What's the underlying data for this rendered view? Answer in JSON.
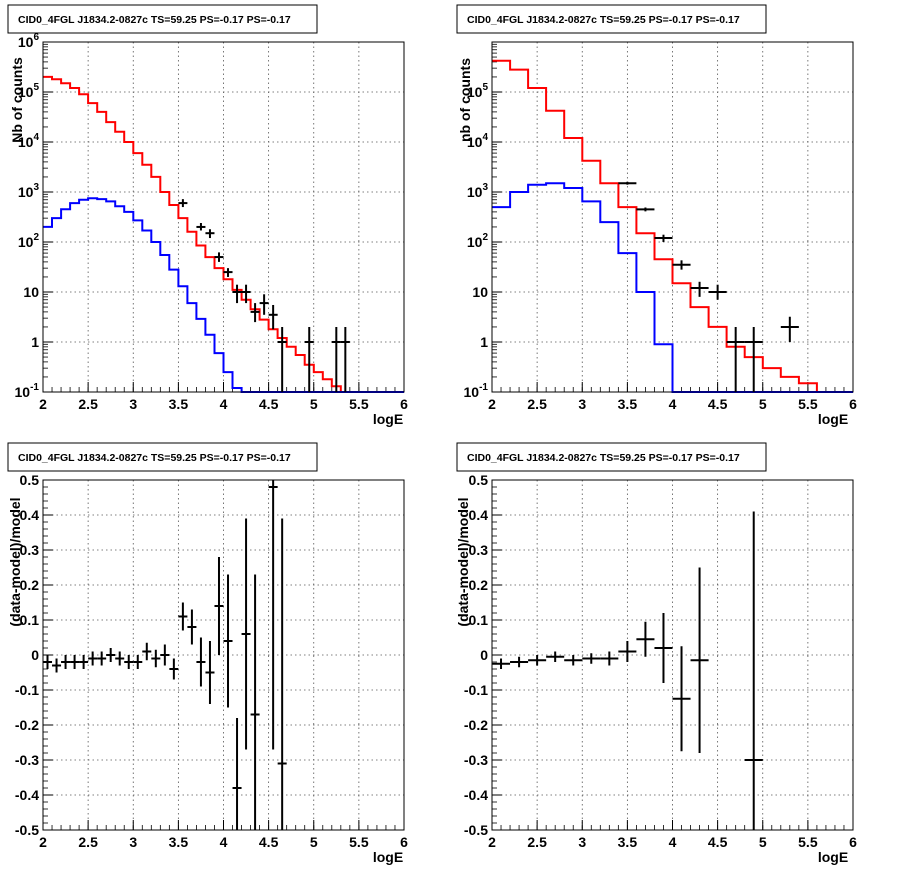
{
  "chart_data": [
    {
      "type": "line",
      "title": "CID0_4FGL J1834.2-0827c TS=59.25 PS=-0.17 PS=-0.17",
      "xlabel": "logE",
      "ylabel": "Nb of counts",
      "xlim": [
        2,
        6
      ],
      "ylim": [
        0.1,
        1000000
      ],
      "yscale": "log",
      "grid": true,
      "x_ticks": [
        "2",
        "2.5",
        "3",
        "3.5",
        "4",
        "4.5",
        "5",
        "5.5",
        "6"
      ],
      "y_ticks": [
        "10^-1",
        "1",
        "10",
        "10^2",
        "10^3",
        "10^4",
        "10^5",
        "10^6"
      ],
      "series": [
        {
          "color": "#ff0000",
          "style": "step",
          "edges": [
            2.0,
            2.1,
            2.2,
            2.3,
            2.4,
            2.5,
            2.6,
            2.7,
            2.8,
            2.9,
            3.0,
            3.1,
            3.2,
            3.3,
            3.4,
            3.5,
            3.6,
            3.7,
            3.8,
            3.9,
            4.0,
            4.1,
            4.2,
            4.3,
            4.4,
            4.5,
            4.6,
            4.7,
            4.8,
            4.9,
            5.0,
            5.1,
            5.2,
            5.3,
            5.4,
            5.5,
            5.6,
            5.7,
            5.8,
            5.9,
            6.0
          ],
          "values": [
            200000,
            180000,
            150000,
            120000,
            90000,
            60000,
            40000,
            25000,
            16000,
            10000,
            6000,
            3500,
            2000,
            1000,
            550,
            300,
            160,
            85,
            50,
            30,
            18,
            11,
            7,
            4.5,
            2.8,
            1.8,
            1.2,
            0.8,
            0.55,
            0.35,
            0.25,
            0.18,
            0.13,
            0.1,
            0.1,
            0.1,
            0.1,
            0.1,
            0.1,
            0.1
          ]
        },
        {
          "color": "#0000ff",
          "style": "step",
          "edges": [
            2.0,
            2.1,
            2.2,
            2.3,
            2.4,
            2.5,
            2.6,
            2.7,
            2.8,
            2.9,
            3.0,
            3.1,
            3.2,
            3.3,
            3.4,
            3.5,
            3.6,
            3.7,
            3.8,
            3.9,
            4.0,
            4.1,
            4.2,
            4.3,
            4.4,
            4.5,
            4.6,
            4.7,
            4.8,
            4.9,
            5.0,
            5.1,
            5.2,
            5.3,
            5.4,
            5.5,
            5.6,
            5.7,
            5.8,
            5.9,
            6.0
          ],
          "values": [
            200,
            300,
            450,
            600,
            700,
            750,
            720,
            650,
            520,
            400,
            270,
            170,
            100,
            55,
            28,
            13,
            6,
            2.9,
            1.4,
            0.6,
            0.25,
            0.12,
            0.1,
            0.1,
            0.1,
            0.1,
            0.1,
            0.1,
            0.1,
            0.1,
            0.1,
            0.1,
            0.1,
            0.1,
            0.1,
            0.1,
            0.1,
            0.1,
            0.1,
            0.1
          ]
        }
      ],
      "points": [
        {
          "x": 3.55,
          "y": 600,
          "ylo": 500,
          "yhi": 720,
          "xerr": 0.05
        },
        {
          "x": 3.75,
          "y": 200,
          "ylo": 170,
          "yhi": 240,
          "xerr": 0.05
        },
        {
          "x": 3.85,
          "y": 150,
          "ylo": 120,
          "yhi": 180,
          "xerr": 0.05
        },
        {
          "x": 3.95,
          "y": 50,
          "ylo": 40,
          "yhi": 62,
          "xerr": 0.05
        },
        {
          "x": 4.05,
          "y": 25,
          "ylo": 20,
          "yhi": 30,
          "xerr": 0.05
        },
        {
          "x": 4.15,
          "y": 10,
          "ylo": 6,
          "yhi": 14,
          "xerr": 0.05
        },
        {
          "x": 4.25,
          "y": 10,
          "ylo": 6,
          "yhi": 14,
          "xerr": 0.05
        },
        {
          "x": 4.35,
          "y": 4,
          "ylo": 2.5,
          "yhi": 6,
          "xerr": 0.05
        },
        {
          "x": 4.45,
          "y": 6,
          "ylo": 3.5,
          "yhi": 9,
          "xerr": 0.05
        },
        {
          "x": 4.55,
          "y": 3.5,
          "ylo": 1.8,
          "yhi": 5.5,
          "xerr": 0.05
        },
        {
          "x": 4.65,
          "y": 1,
          "ylo": 0.1,
          "yhi": 2,
          "xerr": 0.05
        },
        {
          "x": 4.95,
          "y": 1,
          "ylo": 0.1,
          "yhi": 2,
          "xerr": 0.05
        },
        {
          "x": 5.25,
          "y": 1,
          "ylo": 0.1,
          "yhi": 2,
          "xerr": 0.05
        },
        {
          "x": 5.35,
          "y": 1,
          "ylo": 0.1,
          "yhi": 2,
          "xerr": 0.05
        }
      ]
    },
    {
      "type": "line",
      "title": "CID0_4FGL J1834.2-0827c TS=59.25 PS=-0.17 PS=-0.17",
      "xlabel": "logE",
      "ylabel": "nb of counts",
      "xlim": [
        2,
        6
      ],
      "ylim": [
        0.1,
        1000000
      ],
      "yscale": "log",
      "grid": true,
      "x_ticks": [
        "2",
        "2.5",
        "3",
        "3.5",
        "4",
        "4.5",
        "5",
        "5.5",
        "6"
      ],
      "y_ticks": [
        "10^-1",
        "1",
        "10",
        "10^2",
        "10^3",
        "10^4",
        "10^5"
      ],
      "series": [
        {
          "color": "#ff0000",
          "style": "step",
          "edges": [
            2.0,
            2.2,
            2.4,
            2.6,
            2.8,
            3.0,
            3.2,
            3.4,
            3.6,
            3.8,
            4.0,
            4.2,
            4.4,
            4.6,
            4.8,
            5.0,
            5.2,
            5.4,
            5.6,
            5.8,
            6.0
          ],
          "values": [
            420000,
            280000,
            120000,
            42000,
            12000,
            4200,
            1500,
            500,
            150,
            45,
            15,
            5,
            2,
            0.8,
            0.5,
            0.3,
            0.2,
            0.15,
            0.1,
            0.1
          ]
        },
        {
          "color": "#0000ff",
          "style": "step",
          "edges": [
            2.0,
            2.2,
            2.4,
            2.6,
            2.8,
            3.0,
            3.2,
            3.4,
            3.6,
            3.8,
            4.0,
            4.2,
            4.4,
            4.6,
            4.8,
            5.0,
            5.2,
            5.4,
            5.6,
            5.8,
            6.0
          ],
          "values": [
            500,
            1000,
            1400,
            1500,
            1200,
            650,
            250,
            60,
            10,
            0.9,
            0.1,
            0.1,
            0.1,
            0.1,
            0.1,
            0.1,
            0.1,
            0.1,
            0.1,
            0.1
          ]
        }
      ],
      "points": [
        {
          "x": 3.5,
          "y": 1500,
          "ylo": 1400,
          "yhi": 1600,
          "xerr": 0.1
        },
        {
          "x": 3.7,
          "y": 450,
          "ylo": 410,
          "yhi": 490,
          "xerr": 0.1
        },
        {
          "x": 3.9,
          "y": 120,
          "ylo": 100,
          "yhi": 140,
          "xerr": 0.1
        },
        {
          "x": 4.1,
          "y": 35,
          "ylo": 28,
          "yhi": 43,
          "xerr": 0.1
        },
        {
          "x": 4.3,
          "y": 12,
          "ylo": 8,
          "yhi": 16,
          "xerr": 0.1
        },
        {
          "x": 4.5,
          "y": 10,
          "ylo": 7,
          "yhi": 14,
          "xerr": 0.1
        },
        {
          "x": 4.7,
          "y": 1,
          "ylo": 0.1,
          "yhi": 2,
          "xerr": 0.1
        },
        {
          "x": 4.9,
          "y": 1,
          "ylo": 0.1,
          "yhi": 2,
          "xerr": 0.1
        },
        {
          "x": 5.3,
          "y": 2,
          "ylo": 1,
          "yhi": 3.2,
          "xerr": 0.1
        }
      ]
    },
    {
      "type": "scatter",
      "title": "CID0_4FGL J1834.2-0827c TS=59.25 PS=-0.17 PS=-0.17",
      "xlabel": "logE",
      "ylabel": "(data-model)/model",
      "xlim": [
        2,
        6
      ],
      "ylim": [
        -0.5,
        0.5
      ],
      "grid": true,
      "x_ticks": [
        "2",
        "2.5",
        "3",
        "3.5",
        "4",
        "4.5",
        "5",
        "5.5",
        "6"
      ],
      "y_ticks": [
        "-0.5",
        "-0.4",
        "-0.3",
        "-0.2",
        "-0.1",
        "0",
        "0.1",
        "0.2",
        "0.3",
        "0.4",
        "0.5"
      ],
      "points": [
        {
          "x": 2.05,
          "y": -0.02,
          "yerr": 0.02,
          "xerr": 0.05
        },
        {
          "x": 2.15,
          "y": -0.03,
          "yerr": 0.02,
          "xerr": 0.05
        },
        {
          "x": 2.25,
          "y": -0.02,
          "yerr": 0.02,
          "xerr": 0.05
        },
        {
          "x": 2.35,
          "y": -0.02,
          "yerr": 0.02,
          "xerr": 0.05
        },
        {
          "x": 2.45,
          "y": -0.02,
          "yerr": 0.02,
          "xerr": 0.05
        },
        {
          "x": 2.55,
          "y": -0.01,
          "yerr": 0.02,
          "xerr": 0.05
        },
        {
          "x": 2.65,
          "y": -0.01,
          "yerr": 0.02,
          "xerr": 0.05
        },
        {
          "x": 2.75,
          "y": 0,
          "yerr": 0.02,
          "xerr": 0.05
        },
        {
          "x": 2.85,
          "y": -0.01,
          "yerr": 0.02,
          "xerr": 0.05
        },
        {
          "x": 2.95,
          "y": -0.02,
          "yerr": 0.02,
          "xerr": 0.05
        },
        {
          "x": 3.05,
          "y": -0.02,
          "yerr": 0.02,
          "xerr": 0.05
        },
        {
          "x": 3.15,
          "y": 0.01,
          "yerr": 0.025,
          "xerr": 0.05
        },
        {
          "x": 3.25,
          "y": -0.01,
          "yerr": 0.025,
          "xerr": 0.05
        },
        {
          "x": 3.35,
          "y": 0,
          "yerr": 0.03,
          "xerr": 0.05
        },
        {
          "x": 3.45,
          "y": -0.04,
          "yerr": 0.03,
          "xerr": 0.05
        },
        {
          "x": 3.55,
          "y": 0.11,
          "yerr": 0.04,
          "xerr": 0.05
        },
        {
          "x": 3.65,
          "y": 0.08,
          "yerr": 0.05,
          "xerr": 0.05
        },
        {
          "x": 3.75,
          "y": -0.02,
          "yerr": 0.07,
          "xerr": 0.05
        },
        {
          "x": 3.85,
          "y": -0.05,
          "yerr": 0.09,
          "xerr": 0.05
        },
        {
          "x": 3.95,
          "y": 0.14,
          "yerr": 0.14,
          "xerr": 0.05
        },
        {
          "x": 4.05,
          "y": 0.04,
          "yerr": 0.19,
          "xerr": 0.05
        },
        {
          "x": 4.15,
          "y": -0.38,
          "yerr": 0.2,
          "xerr": 0.05
        },
        {
          "x": 4.25,
          "y": 0.06,
          "yerr": 0.33,
          "xerr": 0.05
        },
        {
          "x": 4.35,
          "y": -0.17,
          "yerr": 0.4,
          "xerr": 0.05
        },
        {
          "x": 4.55,
          "y": 0.48,
          "yerr": 0.75,
          "xerr": 0.05
        },
        {
          "x": 4.65,
          "y": -0.31,
          "yerr": 0.7,
          "xerr": 0.05
        }
      ]
    },
    {
      "type": "scatter",
      "title": "CID0_4FGL J1834.2-0827c TS=59.25 PS=-0.17 PS=-0.17",
      "xlabel": "logE",
      "ylabel": "(data-model)/model",
      "xlim": [
        2,
        6
      ],
      "ylim": [
        -0.5,
        0.5
      ],
      "grid": true,
      "x_ticks": [
        "2",
        "2.5",
        "3",
        "3.5",
        "4",
        "4.5",
        "5",
        "5.5",
        "6"
      ],
      "y_ticks": [
        "-0.5",
        "-0.4",
        "-0.3",
        "-0.2",
        "-0.1",
        "0",
        "0.1",
        "0.2",
        "0.3",
        "0.4",
        "0.5"
      ],
      "points": [
        {
          "x": 2.1,
          "y": -0.025,
          "yerr": 0.015,
          "xerr": 0.1
        },
        {
          "x": 2.3,
          "y": -0.02,
          "yerr": 0.015,
          "xerr": 0.1
        },
        {
          "x": 2.5,
          "y": -0.015,
          "yerr": 0.015,
          "xerr": 0.1
        },
        {
          "x": 2.7,
          "y": -0.005,
          "yerr": 0.015,
          "xerr": 0.1
        },
        {
          "x": 2.9,
          "y": -0.015,
          "yerr": 0.015,
          "xerr": 0.1
        },
        {
          "x": 3.1,
          "y": -0.01,
          "yerr": 0.015,
          "xerr": 0.1
        },
        {
          "x": 3.3,
          "y": -0.01,
          "yerr": 0.02,
          "xerr": 0.1
        },
        {
          "x": 3.5,
          "y": 0.01,
          "yerr": 0.03,
          "xerr": 0.1
        },
        {
          "x": 3.7,
          "y": 0.045,
          "yerr": 0.05,
          "xerr": 0.1
        },
        {
          "x": 3.9,
          "y": 0.02,
          "yerr": 0.1,
          "xerr": 0.1
        },
        {
          "x": 4.1,
          "y": -0.125,
          "yerr": 0.15,
          "xerr": 0.1
        },
        {
          "x": 4.3,
          "y": -0.015,
          "yerr": 0.265,
          "xerr": 0.1
        },
        {
          "x": 4.9,
          "y": -0.3,
          "yerr": 0.71,
          "xerr": 0.1
        }
      ]
    }
  ]
}
